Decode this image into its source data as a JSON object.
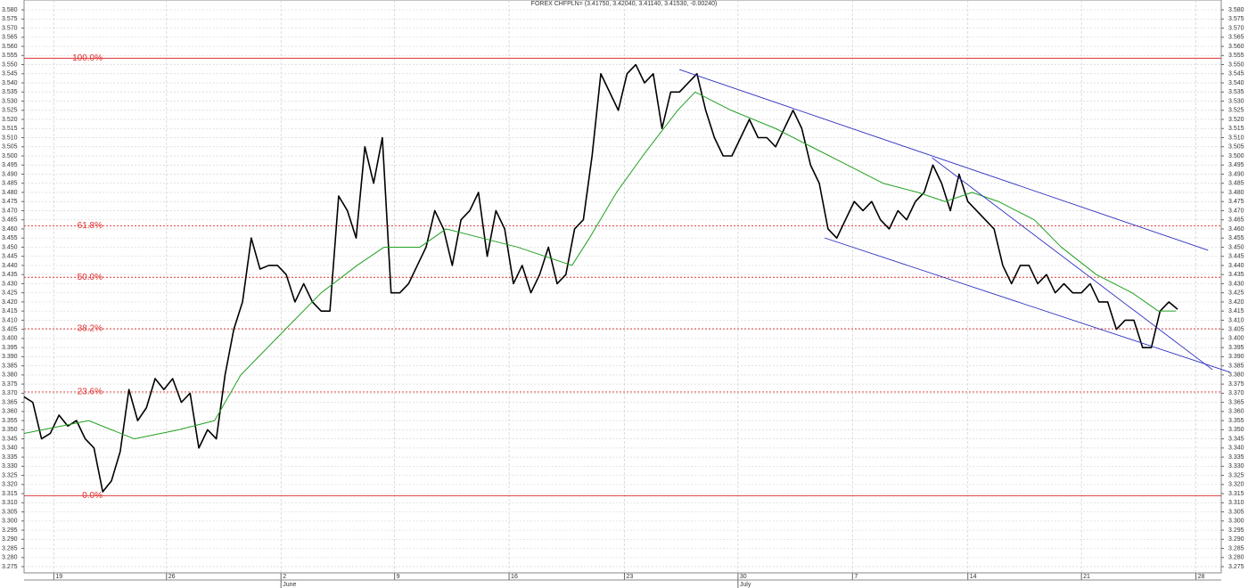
{
  "chart_data": {
    "type": "line",
    "title": "FOREX CHFPLN= (3.41750, 3.42040, 3.41140, 3.41530, -0.00240)",
    "xlim": [
      0,
      137
    ],
    "ylim": [
      3.2716,
      3.5854
    ],
    "grid": true,
    "xticks": [
      {
        "value": 3.4,
        "label": "19"
      },
      {
        "value": 16.3,
        "label": "26"
      },
      {
        "value": 29.4,
        "label": "2"
      },
      {
        "value": 42.4,
        "label": "9"
      },
      {
        "value": 55.5,
        "label": "16"
      },
      {
        "value": 68.7,
        "label": "23"
      },
      {
        "value": 81.7,
        "label": "30"
      },
      {
        "value": 94.8,
        "label": "7"
      },
      {
        "value": 108,
        "label": "14"
      },
      {
        "value": 121,
        "label": "21"
      },
      {
        "value": 134.1,
        "label": "28"
      }
    ],
    "month_ticks": [
      {
        "value": 29.4,
        "label": "June"
      },
      {
        "value": 81.7,
        "label": "July"
      }
    ],
    "yticks": [
      3.275,
      {
        "value": 3.28,
        "label": "3.280"
      },
      3.285,
      {
        "value": 3.29,
        "label": "3.290"
      },
      3.295,
      {
        "value": 3.3,
        "label": "3.300"
      },
      3.305,
      {
        "value": 3.31,
        "label": "3.310"
      },
      3.315,
      {
        "value": 3.32,
        "label": "3.320"
      },
      3.325,
      {
        "value": 3.33,
        "label": "3.330"
      },
      3.335,
      {
        "value": 3.34,
        "label": "3.340"
      },
      3.345,
      {
        "value": 3.35,
        "label": "3.350"
      },
      3.355,
      {
        "value": 3.36,
        "label": "3.360"
      },
      3.365,
      {
        "value": 3.37,
        "label": "3.370"
      },
      3.375,
      {
        "value": 3.38,
        "label": "3.380"
      },
      3.385,
      {
        "value": 3.39,
        "label": "3.390"
      },
      3.395,
      {
        "value": 3.4,
        "label": "3.400"
      },
      3.405,
      {
        "value": 3.41,
        "label": "3.410"
      },
      3.415,
      {
        "value": 3.42,
        "label": "3.420"
      },
      3.425,
      {
        "value": 3.43,
        "label": "3.430"
      },
      3.435,
      {
        "value": 3.44,
        "label": "3.440"
      },
      3.445,
      {
        "value": 3.45,
        "label": "3.450"
      },
      3.455,
      {
        "value": 3.46,
        "label": "3.460"
      },
      3.465,
      {
        "value": 3.47,
        "label": "3.470"
      },
      3.475,
      {
        "value": 3.48,
        "label": "3.480"
      },
      3.485,
      {
        "value": 3.49,
        "label": "3.490"
      },
      3.495,
      {
        "value": 3.5,
        "label": "3.500"
      },
      3.505,
      {
        "value": 3.51,
        "label": "3.510"
      },
      3.515,
      {
        "value": 3.52,
        "label": "3.520"
      },
      3.525,
      {
        "value": 3.53,
        "label": "3.530"
      },
      3.535,
      {
        "value": 3.54,
        "label": "3.540"
      },
      3.545,
      {
        "value": 3.55,
        "label": "3.550"
      },
      3.555,
      {
        "value": 3.56,
        "label": "3.560"
      },
      3.565,
      {
        "value": 3.57,
        "label": "3.570"
      },
      3.575,
      {
        "value": 3.58,
        "label": "3.580"
      }
    ],
    "series": [
      {
        "color": "#000000",
        "values": [
          3.368,
          3.365,
          3.345,
          3.348,
          3.358,
          3.352,
          3.355,
          3.345,
          3.34,
          3.316,
          3.322,
          3.338,
          3.372,
          3.355,
          3.362,
          3.378,
          3.372,
          3.378,
          3.365,
          3.37,
          3.34,
          3.35,
          3.345,
          3.38,
          3.405,
          3.42,
          3.455,
          3.438,
          3.44,
          3.44,
          3.435,
          3.42,
          3.43,
          3.42,
          3.415,
          3.415,
          3.478,
          3.47,
          3.455,
          3.505,
          3.485,
          3.51,
          3.425,
          3.425,
          3.43,
          3.44,
          3.45,
          3.47,
          3.46,
          3.44,
          3.465,
          3.47,
          3.48,
          3.445,
          3.47,
          3.46,
          3.43,
          3.44,
          3.425,
          3.435,
          3.45,
          3.43,
          3.435,
          3.46,
          3.465,
          3.5,
          3.545,
          3.535,
          3.525,
          3.545,
          3.55,
          3.54,
          3.545,
          3.515,
          3.535,
          3.535,
          3.54,
          3.545,
          3.525,
          3.51,
          3.5,
          3.5,
          3.51,
          3.52,
          3.51,
          3.51,
          3.505,
          3.515,
          3.525,
          3.515,
          3.495,
          3.485,
          3.46,
          3.455,
          3.465,
          3.475,
          3.47,
          3.475,
          3.465,
          3.46,
          3.47,
          3.465,
          3.475,
          3.48,
          3.495,
          3.485,
          3.47,
          3.49,
          3.475,
          3.47,
          3.465,
          3.46,
          3.44,
          3.43,
          3.44,
          3.44,
          3.43,
          3.435,
          3.425,
          3.43,
          3.425,
          3.425,
          3.43,
          3.42,
          3.42,
          3.405,
          3.41,
          3.41,
          3.395,
          3.395,
          3.415,
          3.42,
          3.416
        ]
      },
      {
        "color": "#22a022",
        "x": [
          0,
          7.4,
          12.6,
          17.7,
          21.8,
          24.8,
          29.9,
          34,
          38.1,
          41.2,
          45.3,
          48.3,
          52.4,
          56.5,
          59.6,
          62.7,
          64.7,
          67.8,
          70.8,
          74.8,
          76.8,
          80.9,
          86,
          90.1,
          94.2,
          98.3,
          102.3,
          105.4,
          108.5,
          111.5,
          115.6,
          118.7,
          122.7,
          126.8,
          129.8,
          131.8
        ],
        "values": [
          3.348,
          3.355,
          3.345,
          3.35,
          3.355,
          3.38,
          3.405,
          3.425,
          3.44,
          3.45,
          3.45,
          3.46,
          3.455,
          3.45,
          3.445,
          3.44,
          3.455,
          3.48,
          3.5,
          3.525,
          3.535,
          3.525,
          3.515,
          3.505,
          3.495,
          3.485,
          3.48,
          3.475,
          3.48,
          3.475,
          3.465,
          3.45,
          3.435,
          3.425,
          3.415,
          3.415
        ]
      }
    ],
    "levels": [
      {
        "label": "100.0%",
        "value": 3.5535,
        "style": "solid"
      },
      {
        "label": "61.8%",
        "value": 3.4617,
        "style": "dotted"
      },
      {
        "label": "50.0%",
        "value": 3.4335,
        "style": "dotted"
      },
      {
        "label": "38.2%",
        "value": 3.4053,
        "style": "dotted"
      },
      {
        "label": "23.6%",
        "value": 3.3707,
        "style": "dotted"
      },
      {
        "label": "0.0%",
        "value": 3.3138,
        "style": "solid"
      }
    ],
    "level_color": "#e03030",
    "trend_color": "#3030c0",
    "trendlines": [
      {
        "x": [
          75,
          135.5
        ],
        "y": [
          3.5473,
          3.4483
        ]
      },
      {
        "x": [
          91.6,
          138
        ],
        "y": [
          3.4551,
          3.3815
        ]
      },
      {
        "x": [
          103.9,
          136
        ],
        "y": [
          3.499,
          3.3829
        ]
      }
    ]
  }
}
